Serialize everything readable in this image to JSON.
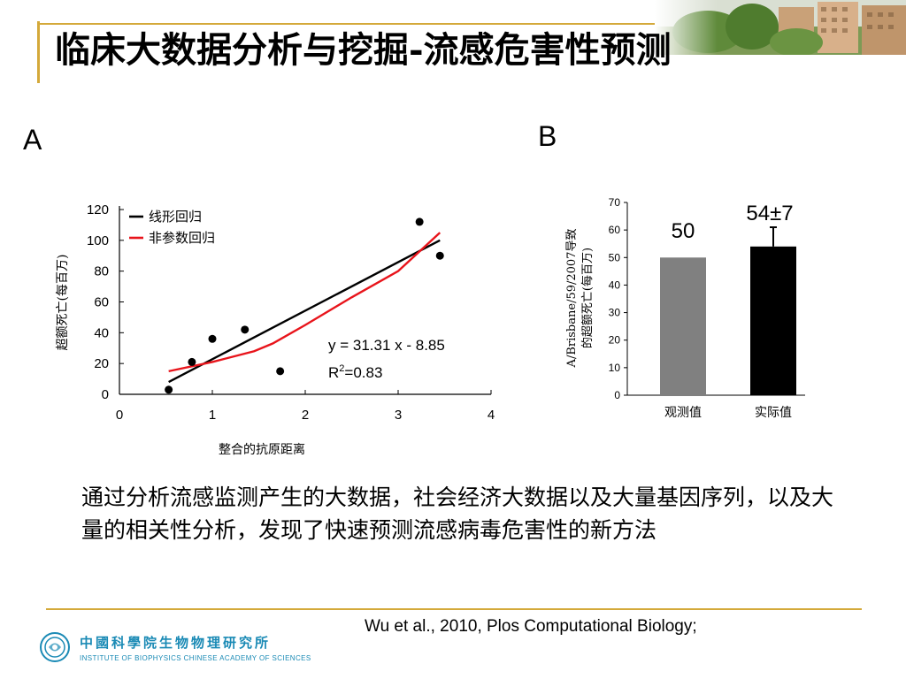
{
  "slide": {
    "title": "临床大数据分析与挖掘-流感危害性预测",
    "body_text": "通过分析流感监测产生的大数据，社会经济大数据以及大量基因序列，以及大量的相关性分析，发现了快速预测流感病毒危害性的新方法",
    "citation": "Wu et al., 2010, Plos Computational Biology;",
    "institute": {
      "name_cn": "中國科學院生物物理研究所",
      "name_en": "INSTITUTE OF BIOPHYSICS CHINESE ACADEMY OF SCIENCES"
    }
  },
  "chart_data": [
    {
      "panel": "A",
      "type": "scatter",
      "xlabel": "整合的抗原距离",
      "ylabel": "超额死亡(每百万)",
      "xlim": [
        0,
        4
      ],
      "ylim": [
        0,
        120
      ],
      "x_ticks": [
        "0",
        "1",
        "2",
        "3",
        "4"
      ],
      "y_ticks": [
        "0",
        "20",
        "40",
        "60",
        "80",
        "100",
        "120"
      ],
      "legend_position": "top-left",
      "points": [
        {
          "x": 0.53,
          "y": 3
        },
        {
          "x": 0.78,
          "y": 21
        },
        {
          "x": 1.0,
          "y": 36
        },
        {
          "x": 1.35,
          "y": 42
        },
        {
          "x": 1.73,
          "y": 15
        },
        {
          "x": 3.23,
          "y": 112
        },
        {
          "x": 3.45,
          "y": 90
        }
      ],
      "series": [
        {
          "name": "线形回归",
          "color": "#000000",
          "x": [
            0.53,
            3.45
          ],
          "y": [
            8,
            100
          ]
        },
        {
          "name": "非参数回归",
          "color": "#e8141b",
          "x": [
            0.53,
            1.0,
            1.45,
            1.65,
            2.0,
            2.5,
            3.0,
            3.45
          ],
          "y": [
            15,
            21,
            28,
            33,
            45,
            63,
            80,
            105
          ]
        }
      ],
      "annotation": {
        "equation": "y = 31.31 x - 8.85",
        "r2_prefix": "R",
        "r2_sup": "2",
        "r2_value": "=0.83"
      }
    },
    {
      "panel": "B",
      "type": "bar",
      "categories": [
        "观测值",
        "实际值"
      ],
      "values": [
        50,
        54
      ],
      "error": [
        0,
        7
      ],
      "ylabel_line1": "A/Brisbane/59/2007导致",
      "ylabel_line2": "的超额死亡(每百万)",
      "ylim": [
        0,
        70
      ],
      "y_ticks": [
        "0",
        "10",
        "20",
        "30",
        "40",
        "50",
        "60",
        "70"
      ],
      "bar_colors": [
        "#808080",
        "#000000"
      ],
      "bar_labels": [
        "50",
        "54±7"
      ]
    }
  ]
}
